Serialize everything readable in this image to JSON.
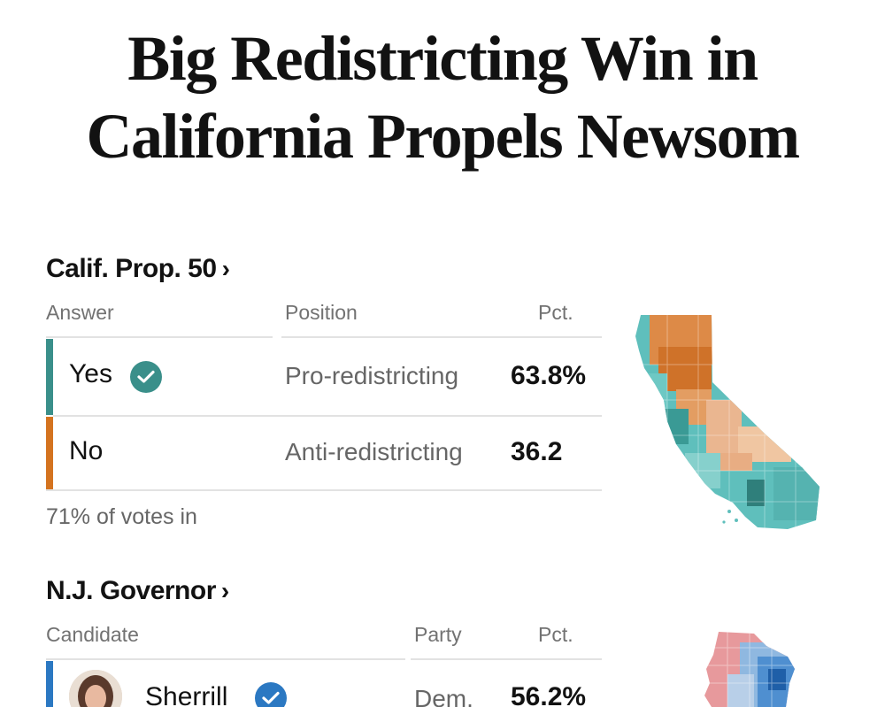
{
  "headline": {
    "line1": "Big Redistricting Win in",
    "line2": "California Propels Newsom"
  },
  "prop50": {
    "title": "Calif. Prop. 50",
    "chevron": "›",
    "headers": {
      "col1": "Answer",
      "col2": "Position",
      "col3": "Pct."
    },
    "rows": [
      {
        "answer": "Yes",
        "position": "Pro-redistricting",
        "pct": "63.8%",
        "winner": true,
        "color": "#3a8f8a"
      },
      {
        "answer": "No",
        "position": "Anti-redistricting",
        "pct": "36.2",
        "winner": false,
        "color": "#d4731f"
      }
    ],
    "footnote": "71% of votes in",
    "map_icon": "california-county-map-icon"
  },
  "nj": {
    "title": "N.J. Governor",
    "chevron": "›",
    "headers": {
      "col1": "Candidate",
      "col2": "Party",
      "col3": "Pct."
    },
    "rows": [
      {
        "candidate": "Sherrill",
        "party": "Dem.",
        "pct": "56.2%",
        "winner": true,
        "color": "#2b78c2"
      }
    ],
    "map_icon": "new-jersey-county-map-icon"
  },
  "colors": {
    "yes": "#3a8f8a",
    "no": "#d4731f",
    "dem": "#2b78c2",
    "rep": "#e7999c",
    "check_yes": "#3a8f8a",
    "check_dem": "#2b78c2"
  }
}
